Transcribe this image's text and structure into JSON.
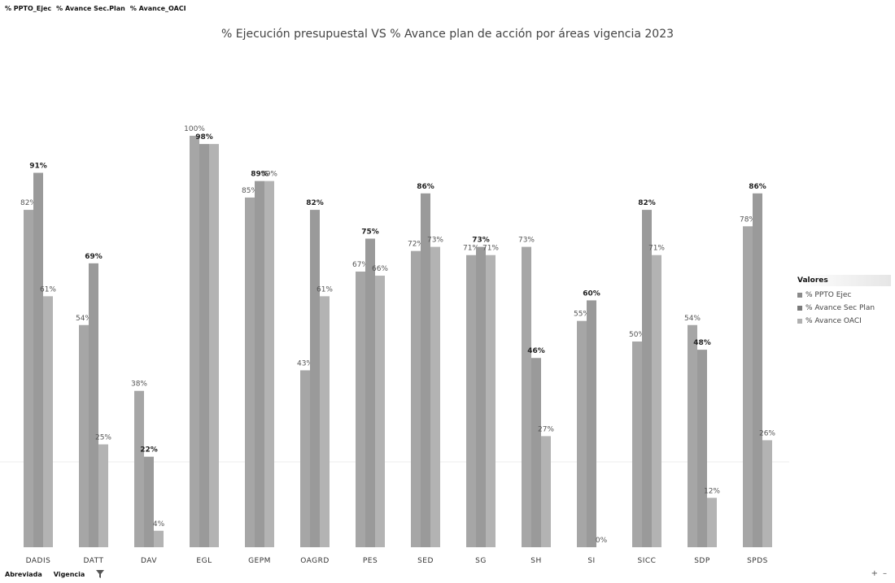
{
  "fields": [
    "% PPTO_Ejec",
    "% Avance Sec.Plan",
    "% Avance_OACI"
  ],
  "bottom": {
    "abbr_label": "Abreviada",
    "vigencia_label": "Vigencia",
    "filter_icon": "filter-icon"
  },
  "zoom": {
    "plus": "+",
    "minus": "–"
  },
  "colors": {
    "ppto": "#a6a6a6",
    "sec": "#9a9a9a",
    "oaci": "#b3b3b3",
    "grid": "#ececec"
  },
  "chart_data": {
    "type": "bar",
    "title": "% Ejecución presupuestal VS % Avance plan de acción por áreas vigencia 2023",
    "categories": [
      "DADIS",
      "DATT",
      "DAV",
      "EGL",
      "GEPM",
      "OAGRD",
      "PES",
      "SED",
      "SG",
      "SH",
      "SI",
      "SICC",
      "SDP",
      "SPDS"
    ],
    "series": [
      {
        "name": "% PPTO Ejec",
        "values": [
          82,
          54,
          38,
          100,
          85,
          43,
          67,
          72,
          71,
          73,
          55,
          50,
          54,
          78
        ],
        "labels": [
          "82%",
          "54%",
          "38%",
          "100%",
          "85%",
          "43%",
          "67%",
          "72%",
          "71%",
          "73%",
          "55%",
          "50%",
          "54%",
          "78%"
        ]
      },
      {
        "name": "% Avance Sec Plan",
        "values": [
          91,
          69,
          22,
          98,
          89,
          82,
          75,
          86,
          73,
          46,
          60,
          82,
          48,
          86
        ],
        "labels": [
          "91%",
          "69%",
          "22%",
          "98%",
          "89%",
          "82%",
          "75%",
          "86%",
          "73%",
          "46%",
          "60%",
          "82%",
          "48%",
          "86%"
        ]
      },
      {
        "name": "% Avance OACI",
        "values": [
          61,
          25,
          4,
          98,
          89,
          61,
          66,
          73,
          71,
          27,
          0,
          71,
          12,
          26
        ],
        "labels": [
          "61%",
          "25%",
          "4%",
          "",
          "89%",
          "61%",
          "66%",
          "73%",
          "71%",
          "27%",
          "0%",
          "71%",
          "12%",
          "26%"
        ]
      }
    ],
    "legend": {
      "title": "Valores",
      "placement": "right"
    },
    "ylim": [
      0,
      100
    ],
    "grid": true
  }
}
